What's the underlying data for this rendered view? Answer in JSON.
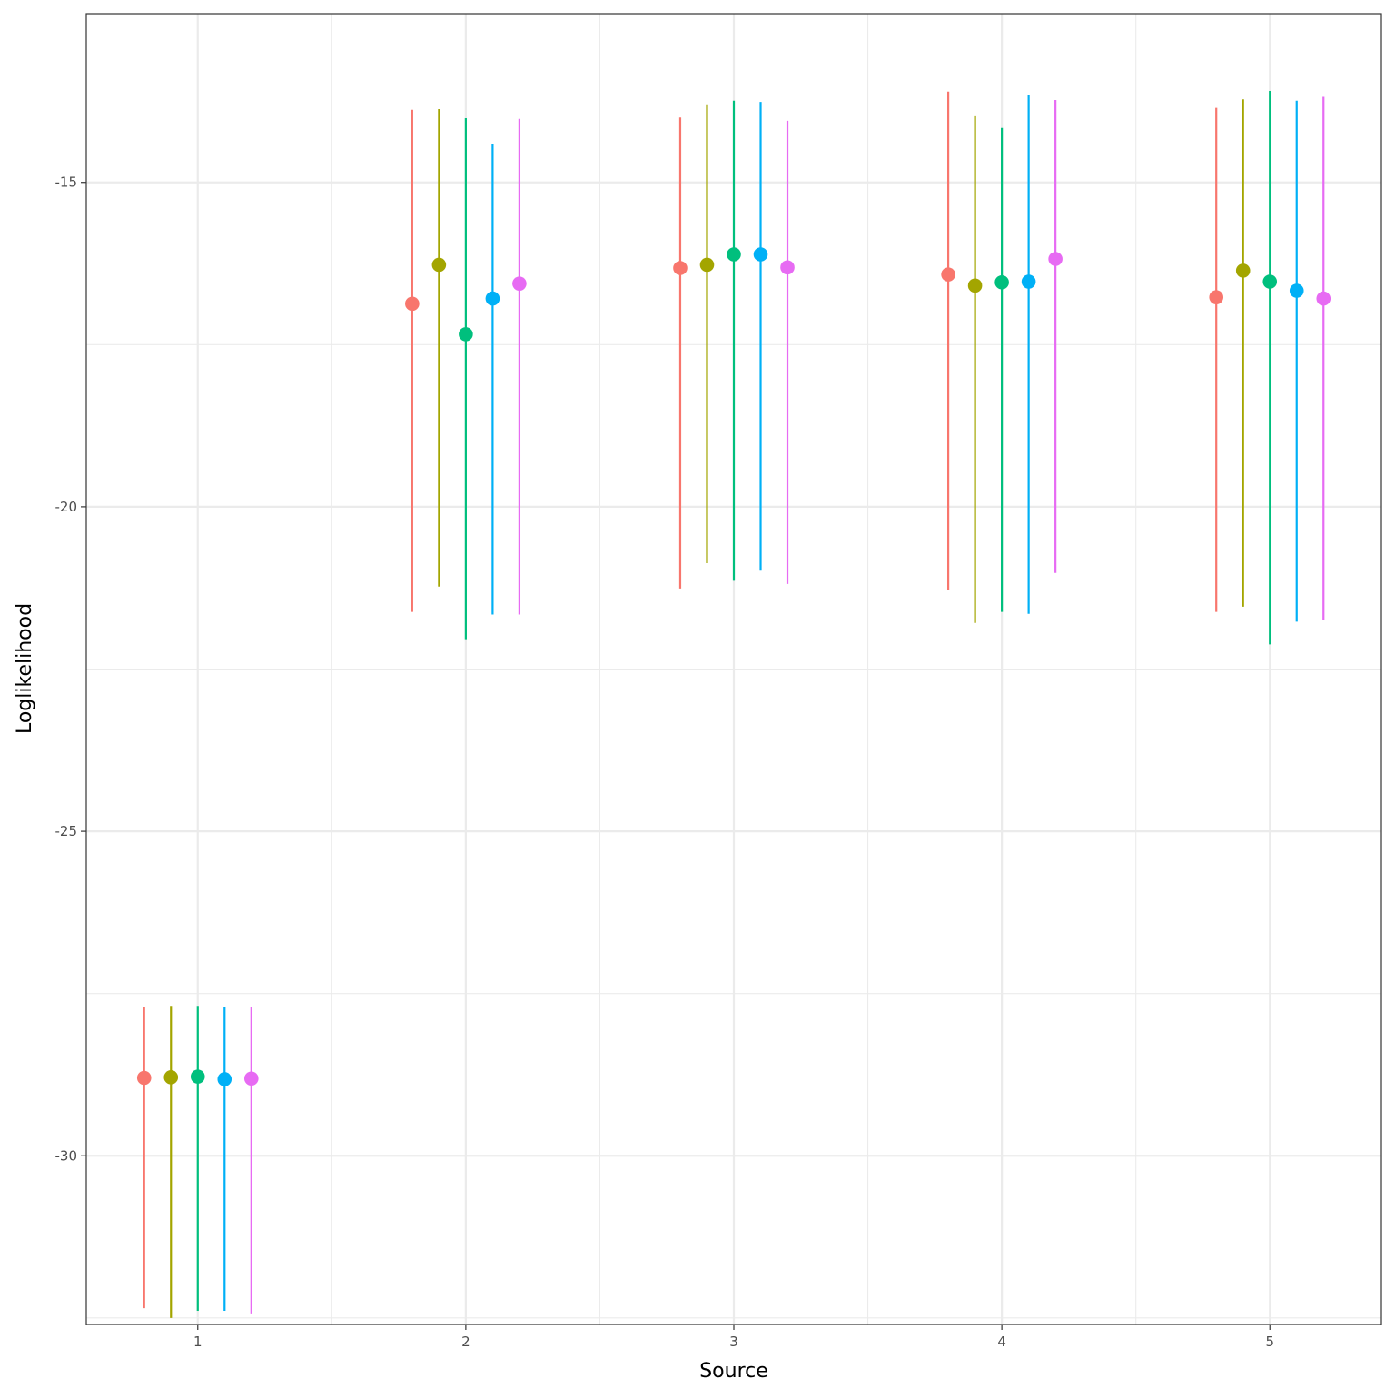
{
  "chart_data": {
    "type": "scatter",
    "subtype": "pointrange",
    "title": "",
    "xlabel": "Source",
    "ylabel": "Loglikelihood",
    "categories": [
      "1",
      "2",
      "3",
      "4",
      "5"
    ],
    "ylim": [
      -32.6,
      -12.4
    ],
    "yticks": [
      -15,
      -20,
      -25,
      -30
    ],
    "ytick_labels": [
      "-15",
      "-20",
      "-25",
      "-30"
    ],
    "grid": true,
    "legend": "none",
    "series": [
      {
        "color": "#F8766D",
        "offset": -0.2,
        "points": [
          {
            "source": 1,
            "y": -28.8,
            "ymin": -32.35,
            "ymax": -27.7
          },
          {
            "source": 2,
            "y": -16.87,
            "ymin": -21.62,
            "ymax": -13.88
          },
          {
            "source": 3,
            "y": -16.32,
            "ymin": -21.26,
            "ymax": -14.0
          },
          {
            "source": 4,
            "y": -16.42,
            "ymin": -21.28,
            "ymax": -13.6
          },
          {
            "source": 5,
            "y": -16.77,
            "ymin": -21.62,
            "ymax": -13.85
          }
        ]
      },
      {
        "color": "#A3A500",
        "offset": -0.1,
        "points": [
          {
            "source": 1,
            "y": -28.79,
            "ymin": -32.5,
            "ymax": -27.69
          },
          {
            "source": 2,
            "y": -16.27,
            "ymin": -21.23,
            "ymax": -13.87
          },
          {
            "source": 3,
            "y": -16.27,
            "ymin": -20.87,
            "ymax": -13.81
          },
          {
            "source": 4,
            "y": -16.59,
            "ymin": -21.79,
            "ymax": -13.98
          },
          {
            "source": 5,
            "y": -16.36,
            "ymin": -21.54,
            "ymax": -13.72
          }
        ]
      },
      {
        "color": "#00BF7D",
        "offset": 0.0,
        "points": [
          {
            "source": 1,
            "y": -28.78,
            "ymin": -32.39,
            "ymax": -27.69
          },
          {
            "source": 2,
            "y": -17.34,
            "ymin": -22.04,
            "ymax": -14.01
          },
          {
            "source": 3,
            "y": -16.11,
            "ymin": -21.14,
            "ymax": -13.74
          },
          {
            "source": 4,
            "y": -16.54,
            "ymin": -21.62,
            "ymax": -14.16
          },
          {
            "source": 5,
            "y": -16.53,
            "ymin": -22.12,
            "ymax": -13.59
          }
        ]
      },
      {
        "color": "#00B0F6",
        "offset": 0.1,
        "points": [
          {
            "source": 1,
            "y": -28.82,
            "ymin": -32.39,
            "ymax": -27.71
          },
          {
            "source": 2,
            "y": -16.79,
            "ymin": -21.66,
            "ymax": -14.41
          },
          {
            "source": 3,
            "y": -16.11,
            "ymin": -20.97,
            "ymax": -13.76
          },
          {
            "source": 4,
            "y": -16.53,
            "ymin": -21.65,
            "ymax": -13.66
          },
          {
            "source": 5,
            "y": -16.67,
            "ymin": -21.77,
            "ymax": -13.74
          }
        ]
      },
      {
        "color": "#E76BF3",
        "offset": 0.2,
        "points": [
          {
            "source": 1,
            "y": -28.81,
            "ymin": -32.43,
            "ymax": -27.7
          },
          {
            "source": 2,
            "y": -16.56,
            "ymin": -21.66,
            "ymax": -14.02
          },
          {
            "source": 3,
            "y": -16.31,
            "ymin": -21.19,
            "ymax": -14.05
          },
          {
            "source": 4,
            "y": -16.18,
            "ymin": -21.02,
            "ymax": -13.73
          },
          {
            "source": 5,
            "y": -16.79,
            "ymin": -21.74,
            "ymax": -13.68
          }
        ]
      }
    ]
  }
}
